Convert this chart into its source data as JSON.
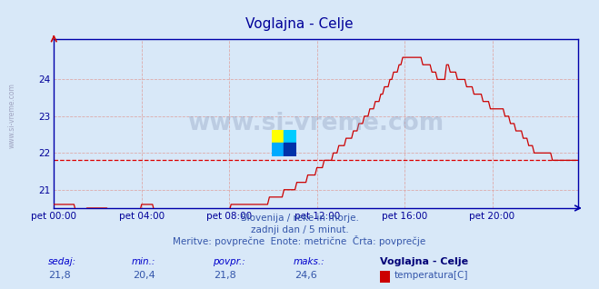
{
  "title": "Voglajna - Celje",
  "bg_color": "#d8e8f8",
  "plot_bg_color": "#d8e8f8",
  "line_color": "#cc0000",
  "grid_color_minor": "#ddaaaa",
  "avg_line_color": "#dd0000",
  "avg_value": 21.8,
  "y_ticks": [
    21,
    22,
    23,
    24
  ],
  "x_tick_labels": [
    "pet 00:00",
    "pet 04:00",
    "pet 08:00",
    "pet 12:00",
    "pet 16:00",
    "pet 20:00"
  ],
  "x_tick_positions": [
    0,
    48,
    96,
    144,
    192,
    240
  ],
  "total_points": 288,
  "subtitle1": "Slovenija / reke in morje.",
  "subtitle2": "zadnji dan / 5 minut.",
  "subtitle3": "Meritve: povprečne  Enote: metrične  Črta: povprečje",
  "footer_label1": "sedaj:",
  "footer_label2": "min.:",
  "footer_label3": "povpr.:",
  "footer_label4": "maks.:",
  "footer_val1": "21,8",
  "footer_val2": "20,4",
  "footer_val3": "21,8",
  "footer_val4": "24,6",
  "footer_station": "Voglajna - Celje",
  "footer_measure": "temperatura[C]",
  "watermark": "www.si-vreme.com",
  "side_label": "www.si-vreme.com",
  "title_color": "#000099",
  "axis_label_color": "#000099",
  "spine_color": "#0000aa",
  "watermark_color": "#8899bb",
  "subtitle_color": "#3355aa",
  "footer_label_color": "#0000cc",
  "footer_val_color": "#3355aa",
  "footer_station_color": "#000077"
}
